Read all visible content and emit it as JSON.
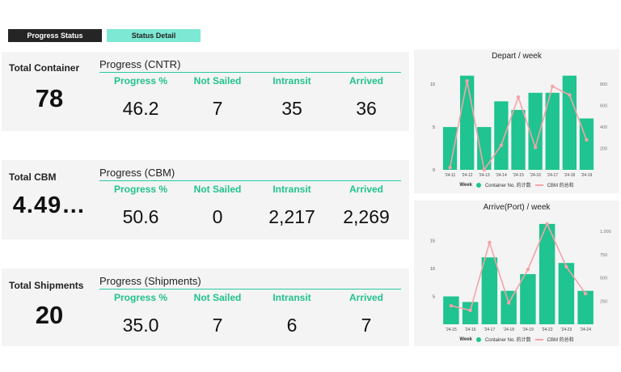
{
  "tabs": {
    "progress_status": "Progress Status",
    "status_detail": "Status Detail"
  },
  "colors": {
    "accent": "#1fc490",
    "line": "#f4a3a8",
    "tab_inactive": "#7de8d3"
  },
  "cards": [
    {
      "total_label": "Total Container",
      "total_value": "78",
      "progress_title": "Progress (CNTR)",
      "headers": [
        "Progress %",
        "Not Sailed",
        "Intransit",
        "Arrived"
      ],
      "values": [
        "46.2",
        "7",
        "35",
        "36"
      ]
    },
    {
      "total_label": "Total CBM",
      "total_value": "4.49…",
      "progress_title": "Progress (CBM)",
      "headers": [
        "Progress %",
        "Not Sailed",
        "Intransit",
        "Arrived"
      ],
      "values": [
        "50.6",
        "0",
        "2,217",
        "2,269"
      ]
    },
    {
      "total_label": "Total Shipments",
      "total_value": "20",
      "progress_title": "Progress (Shipments)",
      "headers": [
        "Progress %",
        "Not Sailed",
        "Intransit",
        "Arrived"
      ],
      "values": [
        "35.0",
        "7",
        "6",
        "7"
      ]
    }
  ],
  "chart_data": [
    {
      "type": "bar",
      "title": "Depart / week",
      "xlabel": "Week",
      "categories": [
        "'24-11",
        "'24-12",
        "'24-13",
        "'24-14",
        "'24-15",
        "'24-16",
        "'24-17",
        "'24-18",
        "'24-19"
      ],
      "series": [
        {
          "name": "Container No. 的计数",
          "type": "bar",
          "axis": "left",
          "values": [
            5,
            11,
            5,
            8,
            7,
            9,
            9,
            11,
            6
          ]
        },
        {
          "name": "CBM 的总和",
          "type": "line",
          "axis": "right",
          "values": [
            20,
            830,
            0,
            230,
            680,
            210,
            780,
            700,
            280
          ]
        }
      ],
      "ylim_left": [
        0,
        12
      ],
      "yticks_left": [
        "0",
        "5",
        "10"
      ],
      "ylim_right": [
        0,
        960
      ],
      "yticks_right": [
        "200",
        "400",
        "600",
        "800"
      ],
      "legend_label": "Week"
    },
    {
      "type": "bar",
      "title": "Arrive(Port) / week",
      "xlabel": "Week",
      "categories": [
        "'24-15",
        "'24-16",
        "'24-17",
        "'24-18",
        "'24-19",
        "'24-22",
        "'24-23",
        "'24-24"
      ],
      "series": [
        {
          "name": "Container No. 的计数",
          "type": "bar",
          "axis": "left",
          "values": [
            5,
            4,
            12,
            6,
            9,
            18,
            11,
            6
          ]
        },
        {
          "name": "CBM 的总和",
          "type": "line",
          "axis": "right",
          "values": [
            200,
            150,
            880,
            230,
            590,
            1080,
            620,
            330
          ]
        }
      ],
      "ylim_left": [
        0,
        19
      ],
      "yticks_left": [
        "5",
        "10",
        "15"
      ],
      "ylim_right": [
        0,
        1140
      ],
      "yticks_right": [
        "250",
        "500",
        "750",
        "1,000"
      ],
      "legend_label": "Week"
    }
  ]
}
